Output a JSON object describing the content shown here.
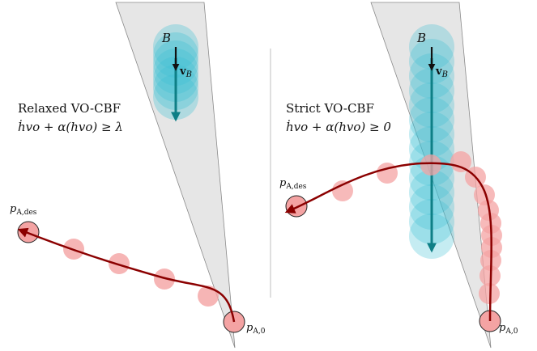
{
  "colors": {
    "cone_fill": "#e6e6e6",
    "cone_stroke": "#8a8a8a",
    "obstacle_fill": "#3ec1d3",
    "velocity_arrow": "#0e7f86",
    "agent_fill": "#f4a3a3",
    "agent_outline": "#222222",
    "path": "#8b0000",
    "divider": "#bfbfbf"
  },
  "left_panel": {
    "caption": "Relaxed VO-CBF",
    "equation": "ḣvo + α(hvo) ≥ λ",
    "obstacle_label": "B",
    "velocity_label": "v",
    "velocity_subscript": "B",
    "start_label": "p",
    "start_subscript": "A,0",
    "goal_label": "p",
    "goal_subscript": "A,des"
  },
  "right_panel": {
    "caption": "Strict VO-CBF",
    "equation": "ḣvo + α(hvo) ≥ 0",
    "obstacle_label": "B",
    "velocity_label": "v",
    "velocity_subscript": "B",
    "start_label": "p",
    "start_subscript": "A,0",
    "goal_label": "p",
    "goal_subscript": "A,des"
  }
}
